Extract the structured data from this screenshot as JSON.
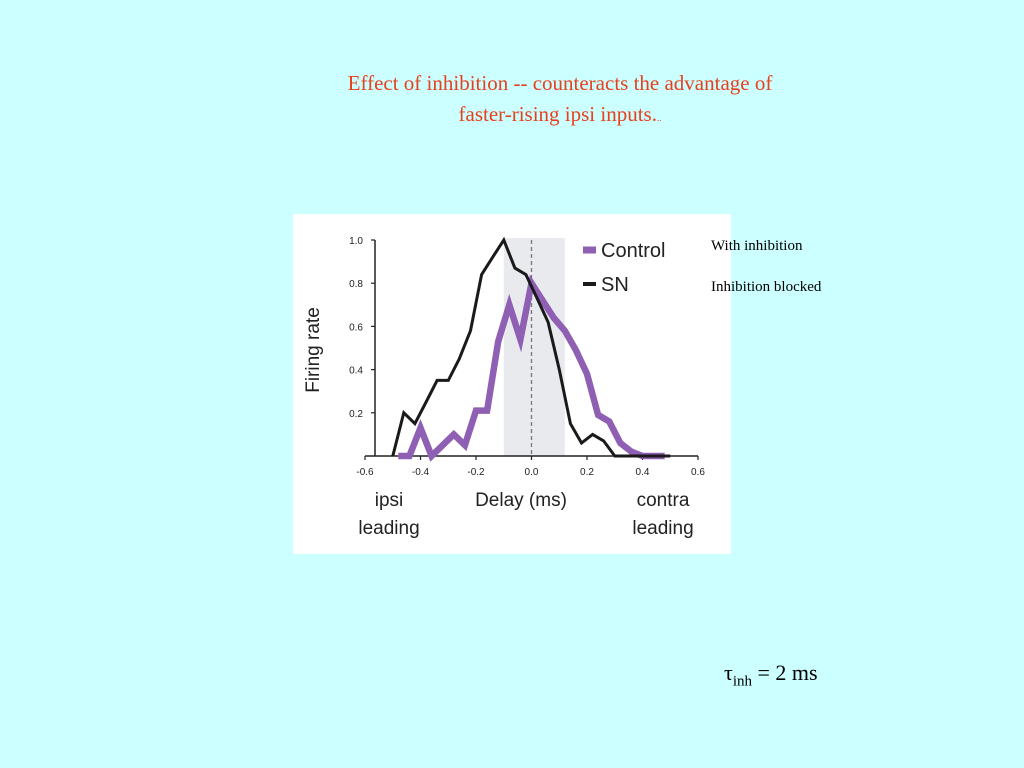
{
  "slide": {
    "title_line1": "Effect of inhibition --  counteracts the advantage of",
    "title_line2": "faster-rising ipsi inputs.",
    "title_mark": "..",
    "note_with": "With inhibition",
    "note_blocked": "Inhibition blocked",
    "tau_symbol": "τ",
    "tau_sub": "inh",
    "tau_rest": " = 2 ms"
  },
  "colors": {
    "background": "#ccffff",
    "title": "#e8401c",
    "control": "#8e5fb3",
    "sn": "#1a1a1a",
    "shade": "#e9eaee"
  },
  "chart_data": {
    "type": "line",
    "title": "",
    "ylabel": "Firing rate",
    "xlabel": "Delay (ms)",
    "xlabel_left": [
      "ipsi",
      "leading"
    ],
    "xlabel_right": [
      "contra",
      "leading"
    ],
    "xlim": [
      -0.6,
      0.6
    ],
    "ylim": [
      0,
      1.0
    ],
    "xticks": [
      -0.6,
      -0.4,
      -0.2,
      0.0,
      0.2,
      0.4,
      0.6
    ],
    "xtick_labels": [
      "-0.6",
      "-0.4",
      "-0.2",
      "0.0",
      "0.2",
      "0.4",
      "0.6"
    ],
    "yticks": [
      0.2,
      0.4,
      0.6,
      0.8,
      1.0
    ],
    "ytick_labels": [
      "0.2",
      "0.4",
      "0.6",
      "0.8",
      "1.0"
    ],
    "shaded_region": [
      -0.1,
      0.12
    ],
    "dashed_line_x": 0.0,
    "legend_position": "top-right",
    "series": [
      {
        "name": "Control",
        "x": [
          -0.48,
          -0.44,
          -0.4,
          -0.36,
          -0.32,
          -0.28,
          -0.24,
          -0.2,
          -0.16,
          -0.12,
          -0.08,
          -0.04,
          0.0,
          0.04,
          0.08,
          0.12,
          0.16,
          0.2,
          0.24,
          0.28,
          0.32,
          0.36,
          0.4,
          0.44,
          0.48
        ],
        "y": [
          0.0,
          0.0,
          0.13,
          0.0,
          0.05,
          0.1,
          0.05,
          0.21,
          0.21,
          0.53,
          0.7,
          0.54,
          0.8,
          0.72,
          0.64,
          0.58,
          0.49,
          0.38,
          0.19,
          0.16,
          0.06,
          0.02,
          0.0,
          0.0,
          0.0
        ]
      },
      {
        "name": "SN",
        "x": [
          -0.5,
          -0.46,
          -0.42,
          -0.38,
          -0.34,
          -0.3,
          -0.26,
          -0.22,
          -0.18,
          -0.14,
          -0.1,
          -0.06,
          -0.02,
          0.02,
          0.06,
          0.1,
          0.14,
          0.18,
          0.22,
          0.26,
          0.3,
          0.34,
          0.38,
          0.42,
          0.46,
          0.5
        ],
        "y": [
          0.0,
          0.2,
          0.15,
          0.25,
          0.35,
          0.35,
          0.45,
          0.58,
          0.84,
          0.92,
          1.0,
          0.87,
          0.84,
          0.73,
          0.62,
          0.4,
          0.15,
          0.06,
          0.1,
          0.07,
          0.0,
          0.0,
          0.0,
          0.0,
          0.0,
          0.0
        ]
      }
    ]
  }
}
